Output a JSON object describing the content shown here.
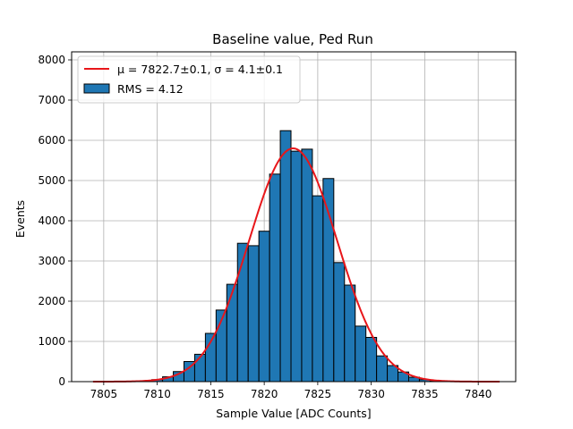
{
  "chart_data": {
    "type": "bar",
    "title": "Baseline value, Ped Run",
    "xlabel": "Sample Value [ADC Counts]",
    "ylabel": "Events",
    "xlim": [
      7802,
      7843.5
    ],
    "ylim": [
      0,
      8200
    ],
    "xticks": [
      7805,
      7810,
      7815,
      7820,
      7825,
      7830,
      7835,
      7840
    ],
    "yticks": [
      0,
      1000,
      2000,
      3000,
      4000,
      5000,
      6000,
      7000,
      8000
    ],
    "grid": true,
    "legend_position": "top-left",
    "bin_width": 1,
    "histogram": {
      "name": "RMS = 4.12",
      "color": "#1f77b4",
      "edge_color": "#000000",
      "bins": [
        {
          "x": 7809,
          "value": 20
        },
        {
          "x": 7810,
          "value": 50
        },
        {
          "x": 7811,
          "value": 120
        },
        {
          "x": 7812,
          "value": 250
        },
        {
          "x": 7813,
          "value": 500
        },
        {
          "x": 7814,
          "value": 680
        },
        {
          "x": 7815,
          "value": 1200
        },
        {
          "x": 7816,
          "value": 1780
        },
        {
          "x": 7817,
          "value": 2420
        },
        {
          "x": 7818,
          "value": 3440
        },
        {
          "x": 7819,
          "value": 3380
        },
        {
          "x": 7820,
          "value": 3740
        },
        {
          "x": 7821,
          "value": 5160
        },
        {
          "x": 7822,
          "value": 6240
        },
        {
          "x": 7823,
          "value": 5730
        },
        {
          "x": 7824,
          "value": 5780
        },
        {
          "x": 7825,
          "value": 4620
        },
        {
          "x": 7826,
          "value": 5050
        },
        {
          "x": 7827,
          "value": 2960
        },
        {
          "x": 7828,
          "value": 2400
        },
        {
          "x": 7829,
          "value": 1380
        },
        {
          "x": 7830,
          "value": 1100
        },
        {
          "x": 7831,
          "value": 640
        },
        {
          "x": 7832,
          "value": 400
        },
        {
          "x": 7833,
          "value": 240
        },
        {
          "x": 7834,
          "value": 110
        },
        {
          "x": 7835,
          "value": 50
        },
        {
          "x": 7836,
          "value": 20
        }
      ]
    },
    "fit": {
      "name": "μ = 7822.7±0.1, σ = 4.1±0.1",
      "color": "#e8161a",
      "mu": 7822.7,
      "sigma": 4.1,
      "amplitude": 5800,
      "x_range": [
        7804,
        7842
      ]
    }
  }
}
